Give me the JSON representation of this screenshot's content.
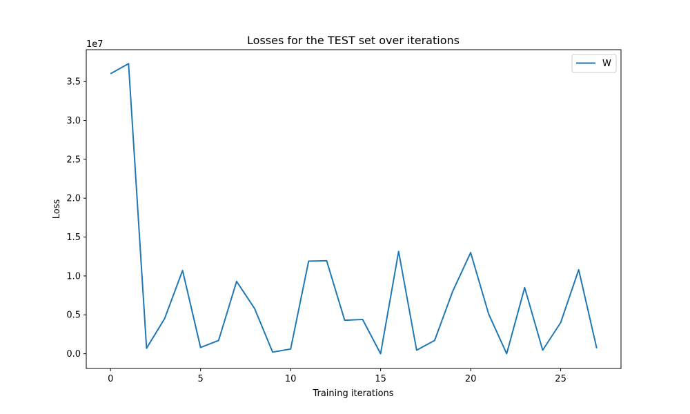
{
  "chart_data": {
    "type": "line",
    "title": "Losses for the TEST set over iterations",
    "xlabel": "Training iterations",
    "ylabel": "Loss",
    "y_scale_label": "1e7",
    "xlim": [
      -1.35,
      28.35
    ],
    "ylim": [
      -1.9,
      39.1
    ],
    "x_ticks": [
      0,
      5,
      10,
      15,
      20,
      25
    ],
    "y_ticks": [
      0.0,
      0.5,
      1.0,
      1.5,
      2.0,
      2.5,
      3.0,
      3.5
    ],
    "y_tick_labels": [
      "0.0",
      "0.5",
      "1.0",
      "1.5",
      "2.0",
      "2.5",
      "3.0",
      "3.5"
    ],
    "y_tick_values_scaled": [
      0,
      0.5,
      1.0,
      1.5,
      2.0,
      2.5,
      3.0,
      3.5
    ],
    "grid": false,
    "legend_position": "upper right",
    "series": [
      {
        "name": "W",
        "color": "#1f77b4",
        "x": [
          0,
          1,
          2,
          3,
          4,
          5,
          6,
          7,
          8,
          9,
          10,
          11,
          12,
          13,
          14,
          15,
          16,
          17,
          18,
          19,
          20,
          21,
          22,
          23,
          24,
          25,
          26,
          27
        ],
        "y": [
          36000000,
          37300000,
          700000,
          4500000,
          10700000,
          800000,
          1700000,
          9300000,
          5800000,
          200000,
          600000,
          11900000,
          11950000,
          4300000,
          4400000,
          0,
          13150000,
          450000,
          1700000,
          8000000,
          13000000,
          5100000,
          0,
          8500000,
          450000,
          4000000,
          10800000,
          700000
        ]
      }
    ]
  }
}
